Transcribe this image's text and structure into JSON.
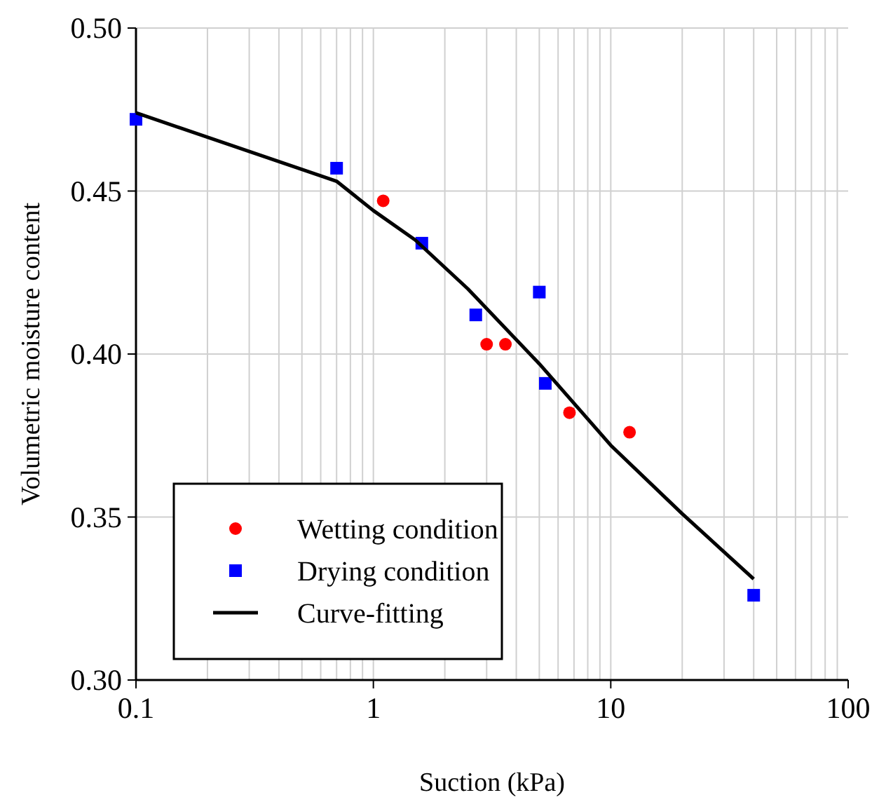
{
  "chart_data": {
    "type": "scatter",
    "xlabel": "Suction (kPa)",
    "ylabel": "Volumetric moisture content",
    "log": "x",
    "grid": true,
    "legend": "bottom left",
    "xlim": [
      0.1,
      100
    ],
    "xticks": [
      0.1,
      1,
      10,
      100
    ],
    "ylim": [
      0.3,
      0.5
    ],
    "yticks": [
      {
        "value": 0.3,
        "label": "0.30"
      },
      0.35,
      {
        "value": 0.4,
        "label": "0.40"
      },
      0.45,
      {
        "value": 0.5,
        "label": "0.50"
      }
    ],
    "series": [
      {
        "name": "Wetting condition",
        "marker": "circle",
        "color": "#ff0000",
        "x": [
          1.1,
          3.0,
          3.6,
          6.7,
          12
        ],
        "values": [
          0.447,
          0.403,
          0.403,
          0.382,
          0.376
        ]
      },
      {
        "name": "Drying condition",
        "marker": "square",
        "color": "#0000ff",
        "x": [
          0.1,
          0.7,
          1.6,
          2.7,
          5.0,
          5.3,
          40
        ],
        "values": [
          0.472,
          0.457,
          0.434,
          0.412,
          0.419,
          0.391,
          0.326
        ]
      },
      {
        "name": "Curve-fitting",
        "type": "line",
        "marker": "none",
        "line_style": "solid",
        "color": "#000000",
        "x": [
          0.1,
          0.7,
          1.0,
          1.5,
          2.5,
          5,
          10,
          20,
          40
        ],
        "values": [
          0.474,
          0.453,
          0.444,
          0.435,
          0.42,
          0.397,
          0.372,
          0.351,
          0.331
        ]
      }
    ]
  }
}
